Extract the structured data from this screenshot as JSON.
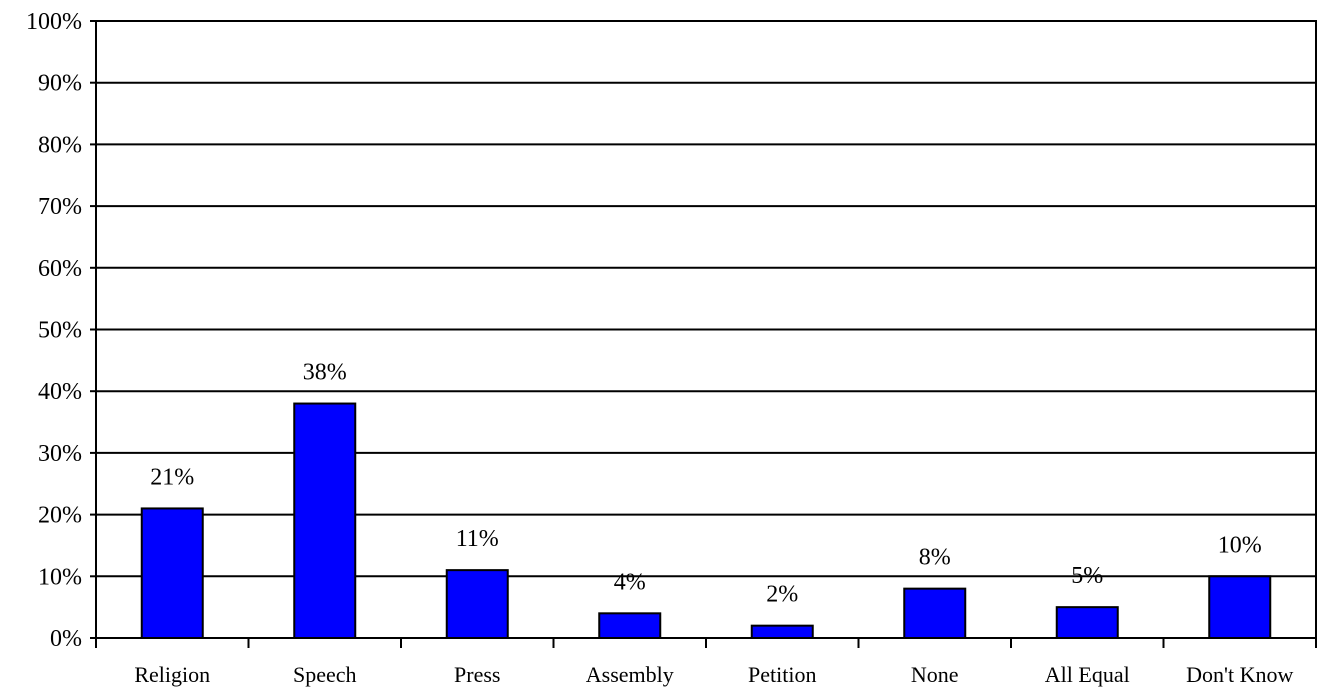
{
  "chart_data": {
    "type": "bar",
    "categories": [
      "Religion",
      "Speech",
      "Press",
      "Assembly",
      "Petition",
      "None",
      "All Equal",
      "Don't Know"
    ],
    "values": [
      21,
      38,
      11,
      4,
      2,
      8,
      5,
      10
    ],
    "data_labels": [
      "21%",
      "38%",
      "11%",
      "4%",
      "2%",
      "8%",
      "5%",
      "10%"
    ],
    "title": "",
    "xlabel": "",
    "ylabel": "",
    "ylim": [
      0,
      100
    ],
    "yticks": [
      "0%",
      "10%",
      "20%",
      "30%",
      "40%",
      "50%",
      "60%",
      "70%",
      "80%",
      "90%",
      "100%"
    ],
    "grid": true,
    "legend": "none",
    "colors": {
      "bar": "#0000ff",
      "bar_outline": "#000000",
      "grid": "#000000",
      "background": "#ffffff"
    }
  }
}
